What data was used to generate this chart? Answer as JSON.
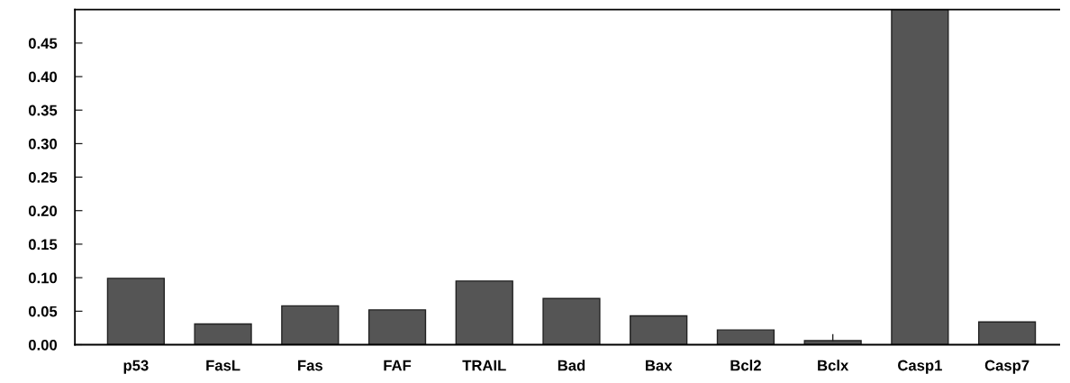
{
  "chart_data": {
    "type": "bar",
    "categories": [
      "p53",
      "FasL",
      "Fas",
      "FAF",
      "TRAIL",
      "Bad",
      "Bax",
      "Bcl2",
      "Bclx",
      "Casp1",
      "Casp7"
    ],
    "values": [
      0.099,
      0.031,
      0.058,
      0.052,
      0.095,
      0.069,
      0.043,
      0.022,
      0.006,
      0.5,
      0.034
    ],
    "errors": [
      null,
      null,
      null,
      null,
      null,
      null,
      null,
      null,
      [
        0.006,
        0.015
      ],
      null,
      null
    ],
    "color": "#555555",
    "ylim": [
      0,
      0.5
    ],
    "yticks": [
      {
        "value": 0,
        "label": "0.00"
      },
      {
        "value": 0.05,
        "label": "0.05"
      },
      {
        "value": 0.1,
        "label": "0.10"
      },
      {
        "value": 0.15,
        "label": "0.15"
      },
      {
        "value": 0.2,
        "label": "0.20"
      },
      {
        "value": 0.25,
        "label": "0.25"
      },
      {
        "value": 0.3,
        "label": "0.30"
      },
      {
        "value": 0.35,
        "label": "0.35"
      },
      {
        "value": 0.4,
        "label": "0.40"
      },
      {
        "value": 0.45,
        "label": "0.45"
      }
    ],
    "grid": false
  }
}
